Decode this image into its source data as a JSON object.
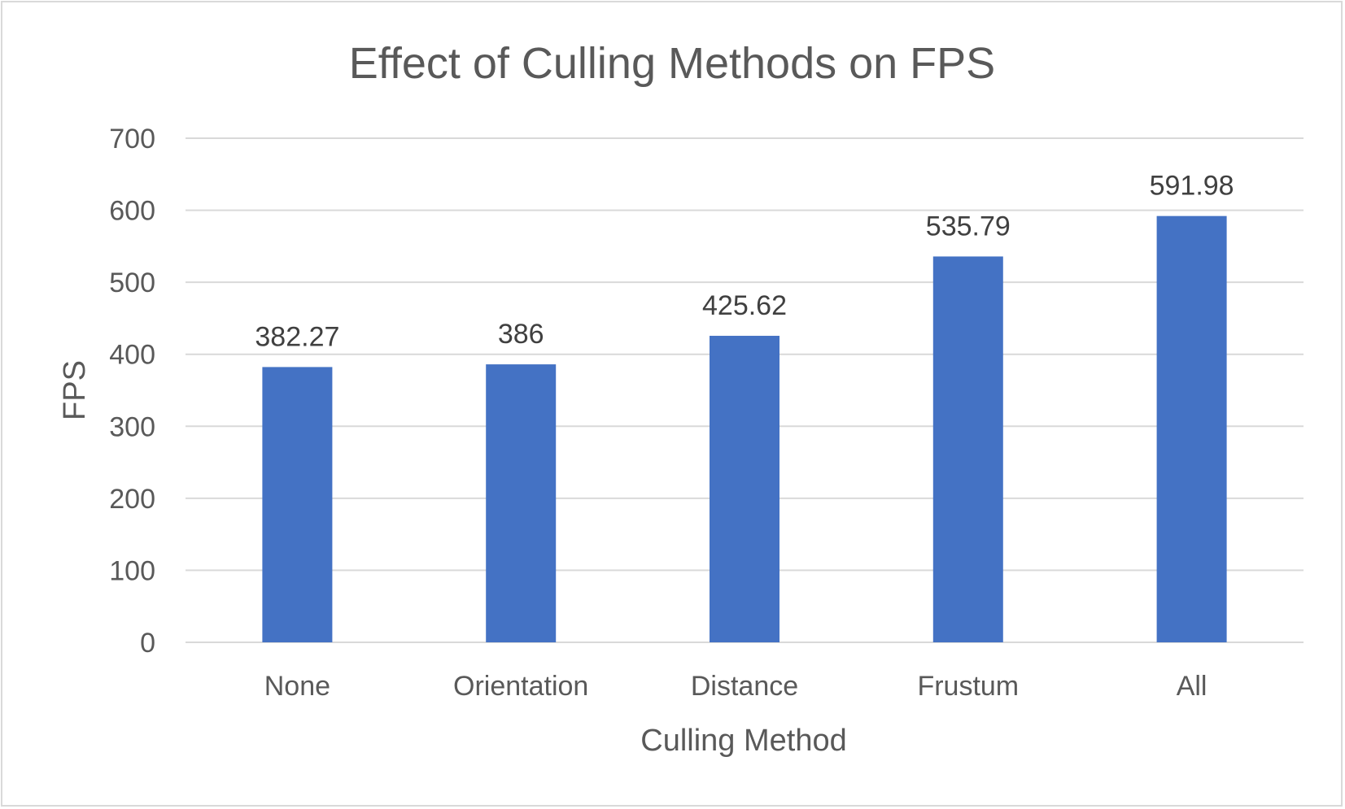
{
  "chart_data": {
    "type": "bar",
    "title": "Effect of Culling Methods on FPS",
    "xlabel": "Culling Method",
    "ylabel": "FPS",
    "categories": [
      "None",
      "Orientation",
      "Distance",
      "Frustum",
      "All"
    ],
    "values": [
      382.27,
      386,
      425.62,
      535.79,
      591.98
    ],
    "data_labels": [
      "382.27",
      "386",
      "425.62",
      "535.79",
      "591.98"
    ],
    "ylim": [
      0,
      700
    ],
    "yticks": [
      0,
      100,
      200,
      300,
      400,
      500,
      600,
      700
    ],
    "grid": true,
    "legend": "none",
    "bar_color": "#4472c4",
    "grid_color": "#d9d9d9",
    "text_color": "#595959"
  }
}
